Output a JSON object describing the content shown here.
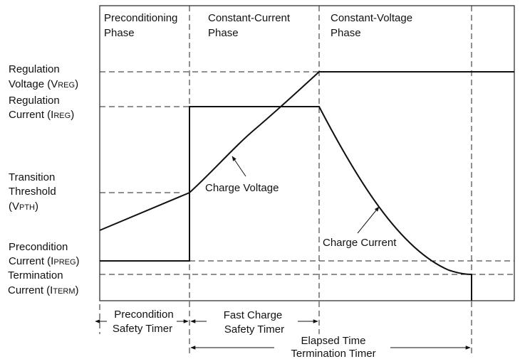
{
  "phases": {
    "precondition": [
      "Preconditioning",
      "Phase"
    ],
    "constant_current": [
      "Constant-Current",
      "Phase"
    ],
    "constant_voltage": [
      "Constant-Voltage",
      "Phase"
    ]
  },
  "levels": {
    "vreg": {
      "line1": "Regulation",
      "line2": "Voltage (V",
      "sub": "REG",
      "close": ")"
    },
    "ireg": {
      "line1": "Regulation",
      "line2": "Current (I",
      "sub": "REG",
      "close": ")"
    },
    "vpth": {
      "line1": "Transition",
      "line2": "Threshold",
      "line3": "(V",
      "sub": "PTH",
      "close": ")"
    },
    "ipreg": {
      "line1": "Precondition",
      "line2": "Current (I",
      "sub": "PREG",
      "close": ")"
    },
    "iterm": {
      "line1": "Termination",
      "line2": "Current (I",
      "sub": "TERM",
      "close": ")"
    }
  },
  "curves": {
    "voltage_label": "Charge Voltage",
    "current_label": "Charge Current"
  },
  "timers": {
    "precondition": [
      "Precondition",
      "Safety Timer"
    ],
    "fast_charge": [
      "Fast Charge",
      "Safety Timer"
    ],
    "termination": [
      "Elapsed Time",
      "Termination Timer"
    ]
  }
}
